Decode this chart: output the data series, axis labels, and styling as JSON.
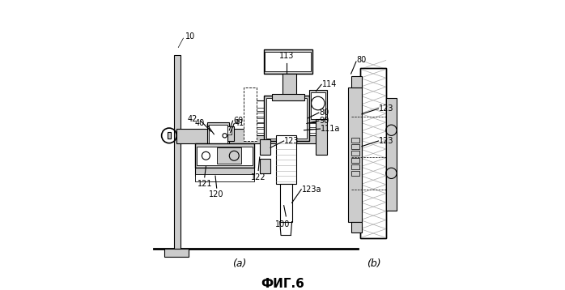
{
  "title": "ФИГ.6",
  "subtitle_a": "(a)",
  "subtitle_b": "(b)",
  "background_color": "#ffffff",
  "line_color": "#000000",
  "gray_color": "#aaaaaa",
  "light_gray": "#cccccc",
  "hatch_color": "#555555",
  "fig_width": 6.98,
  "fig_height": 3.58
}
